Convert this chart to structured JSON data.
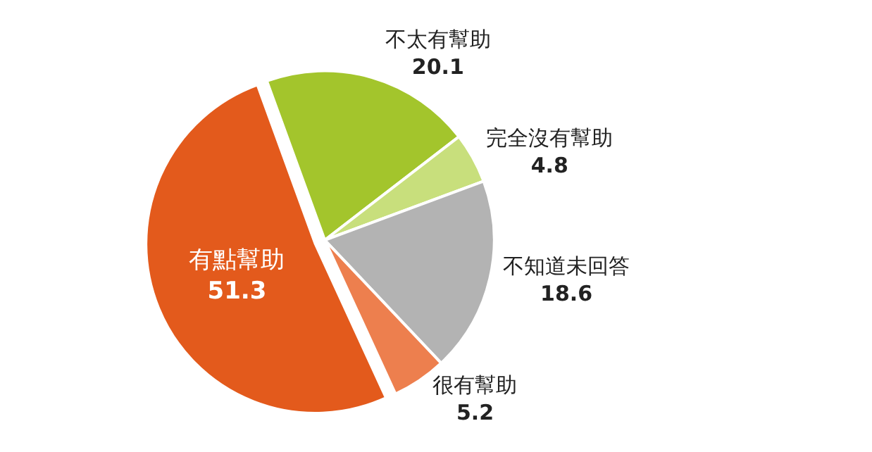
{
  "chart_data": {
    "type": "pie",
    "categories": [
      "不太有幫助",
      "完全沒有幫助",
      "不知道未回答",
      "很有幫助",
      "有點幫助"
    ],
    "values": [
      20.1,
      4.8,
      18.6,
      5.2,
      51.3
    ],
    "colors": [
      "#a3c52c",
      "#c8df7c",
      "#b3b3b3",
      "#ed7f4e",
      "#e35a1c"
    ],
    "data_labels": true,
    "legend": false
  }
}
